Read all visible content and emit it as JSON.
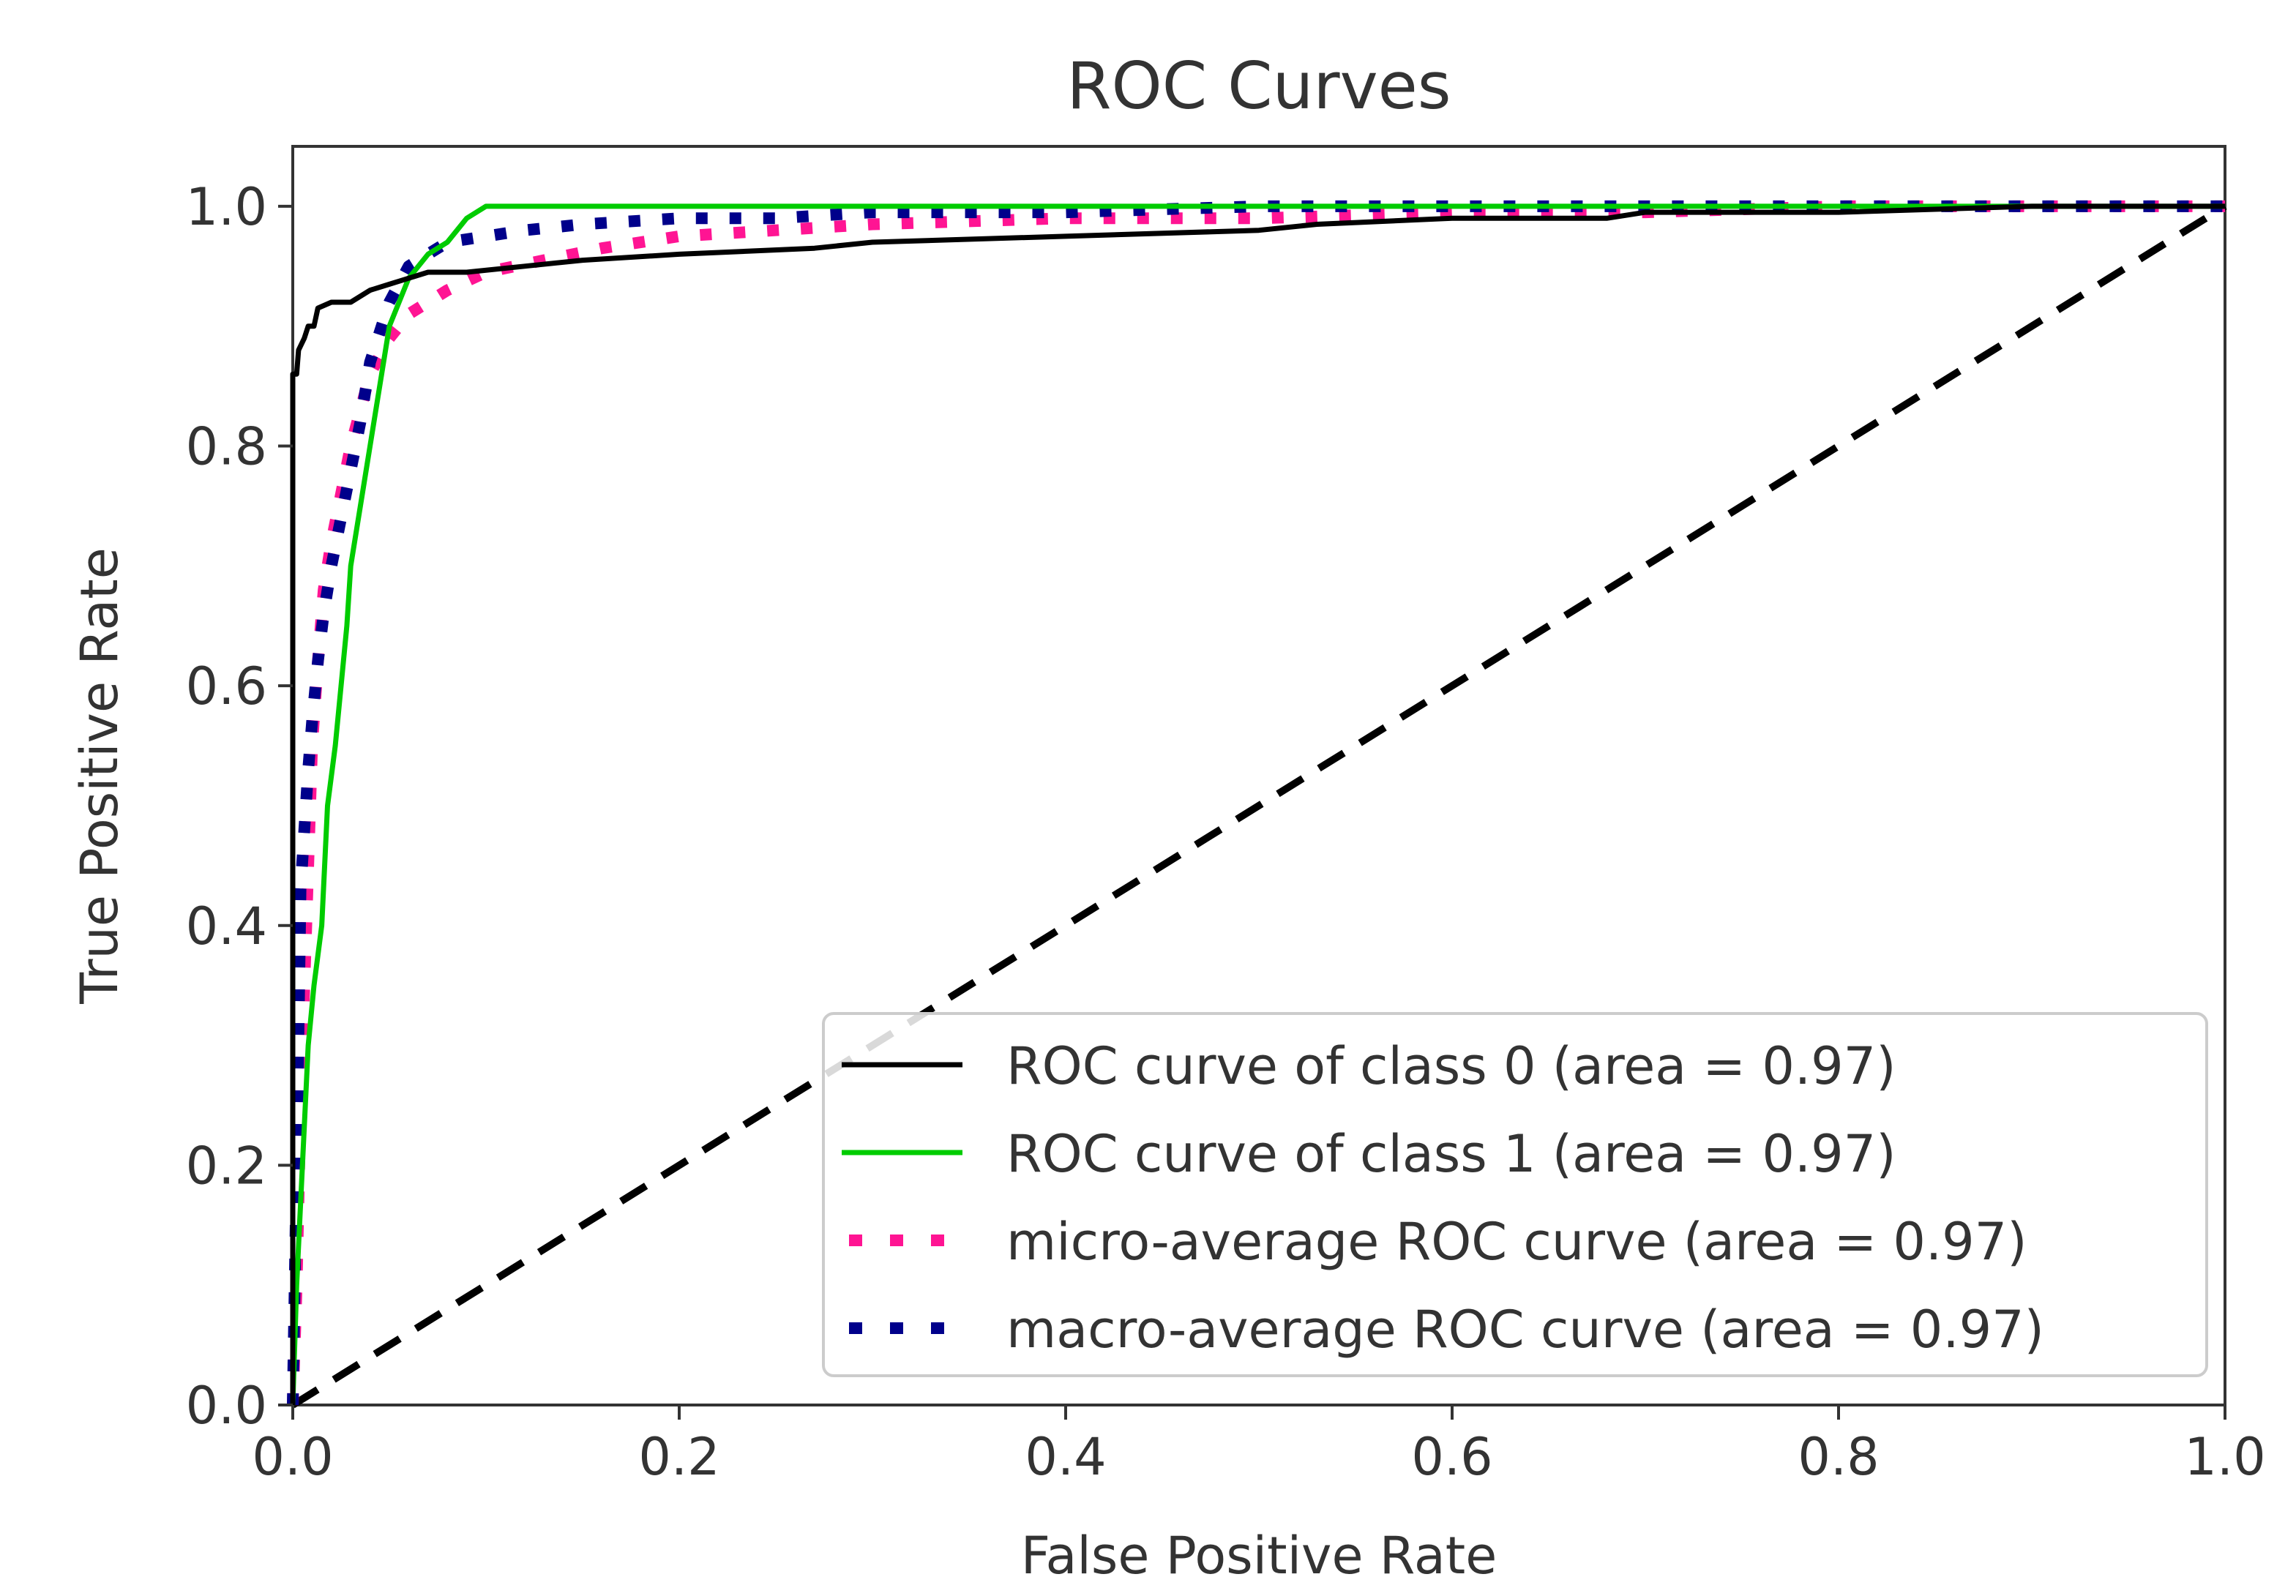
{
  "chart_data": {
    "type": "line",
    "title": "ROC Curves",
    "xlabel": "False Positive Rate",
    "ylabel": "True Positive Rate",
    "xlim": [
      0,
      1
    ],
    "ylim": [
      0,
      1.05
    ],
    "xticks": [
      "0.0",
      "0.2",
      "0.4",
      "0.6",
      "0.8",
      "1.0"
    ],
    "yticks": [
      "0.0",
      "0.2",
      "0.4",
      "0.6",
      "0.8",
      "1.0"
    ],
    "grid": false,
    "legend_position": "lower-right",
    "series": [
      {
        "name": "ROC curve of class 0 (area = 0.97)",
        "color": "#000000",
        "style": "solid",
        "x": [
          0.0,
          0.0,
          0.002,
          0.003,
          0.006,
          0.008,
          0.011,
          0.013,
          0.02,
          0.03,
          0.04,
          0.05,
          0.06,
          0.07,
          0.09,
          0.12,
          0.15,
          0.2,
          0.27,
          0.3,
          0.4,
          0.5,
          0.53,
          0.6,
          0.68,
          0.7,
          0.8,
          0.9,
          1.0
        ],
        "y": [
          0.0,
          0.86,
          0.86,
          0.88,
          0.89,
          0.9,
          0.9,
          0.915,
          0.92,
          0.92,
          0.93,
          0.935,
          0.94,
          0.945,
          0.945,
          0.95,
          0.955,
          0.96,
          0.965,
          0.97,
          0.975,
          0.98,
          0.985,
          0.99,
          0.99,
          0.995,
          0.995,
          1.0,
          1.0
        ]
      },
      {
        "name": "ROC curve of class 1 (area = 0.97)",
        "color": "#00cc00",
        "style": "solid",
        "x": [
          0.0,
          0.002,
          0.005,
          0.008,
          0.011,
          0.015,
          0.018,
          0.022,
          0.025,
          0.028,
          0.03,
          0.035,
          0.04,
          0.045,
          0.05,
          0.06,
          0.07,
          0.08,
          0.09,
          0.1,
          0.15,
          0.3,
          0.5,
          1.0
        ],
        "y": [
          0.0,
          0.1,
          0.2,
          0.3,
          0.35,
          0.4,
          0.5,
          0.55,
          0.6,
          0.65,
          0.7,
          0.75,
          0.8,
          0.85,
          0.9,
          0.94,
          0.96,
          0.97,
          0.99,
          1.0,
          1.0,
          1.0,
          1.0,
          1.0
        ]
      },
      {
        "name": "micro-average ROC curve (area = 0.97)",
        "color": "#ff1493",
        "style": "dotted",
        "x": [
          0.0,
          0.002,
          0.004,
          0.006,
          0.008,
          0.01,
          0.013,
          0.016,
          0.02,
          0.025,
          0.03,
          0.035,
          0.04,
          0.05,
          0.06,
          0.08,
          0.1,
          0.13,
          0.16,
          0.2,
          0.25,
          0.3,
          0.4,
          0.5,
          0.6,
          0.7,
          0.8,
          0.9,
          1.0
        ],
        "y": [
          0.0,
          0.1,
          0.25,
          0.35,
          0.45,
          0.55,
          0.62,
          0.68,
          0.72,
          0.76,
          0.8,
          0.83,
          0.86,
          0.89,
          0.91,
          0.93,
          0.945,
          0.955,
          0.965,
          0.975,
          0.98,
          0.985,
          0.99,
          0.99,
          0.995,
          0.995,
          1.0,
          1.0,
          1.0
        ]
      },
      {
        "name": "macro-average ROC curve (area = 0.97)",
        "color": "#00008b",
        "style": "dotted",
        "x": [
          0.0,
          0.002,
          0.004,
          0.006,
          0.008,
          0.01,
          0.013,
          0.016,
          0.02,
          0.025,
          0.03,
          0.035,
          0.04,
          0.05,
          0.06,
          0.07,
          0.08,
          0.1,
          0.12,
          0.15,
          0.2,
          0.25,
          0.3,
          0.4,
          0.5,
          0.6,
          0.7,
          0.8,
          0.9,
          1.0
        ],
        "y": [
          0.0,
          0.2,
          0.43,
          0.48,
          0.53,
          0.57,
          0.62,
          0.66,
          0.7,
          0.74,
          0.78,
          0.82,
          0.87,
          0.92,
          0.95,
          0.96,
          0.97,
          0.975,
          0.98,
          0.985,
          0.99,
          0.99,
          0.995,
          0.995,
          1.0,
          1.0,
          1.0,
          1.0,
          1.0,
          1.0
        ]
      },
      {
        "name": "",
        "color": "#000000",
        "style": "dashed",
        "x": [
          0.0,
          1.0
        ],
        "y": [
          0.0,
          1.0
        ]
      }
    ]
  }
}
